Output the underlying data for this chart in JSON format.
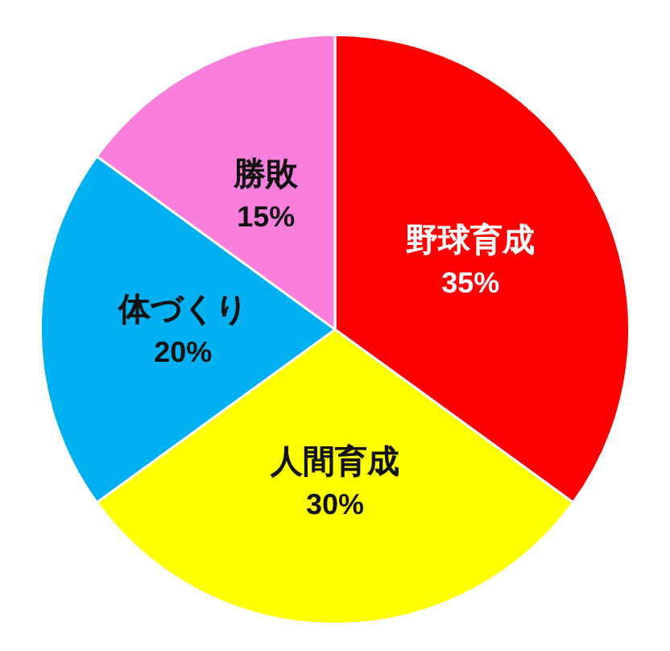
{
  "chart_data": {
    "type": "pie",
    "categories": [
      "野球育成",
      "人間育成",
      "体づくり",
      "勝敗"
    ],
    "values": [
      35,
      30,
      20,
      15
    ],
    "colors": [
      "#ff0000",
      "#ffff00",
      "#00b0f0",
      "#fa7fdc"
    ],
    "value_labels": [
      "35%",
      "30%",
      "20%",
      "15%"
    ]
  }
}
